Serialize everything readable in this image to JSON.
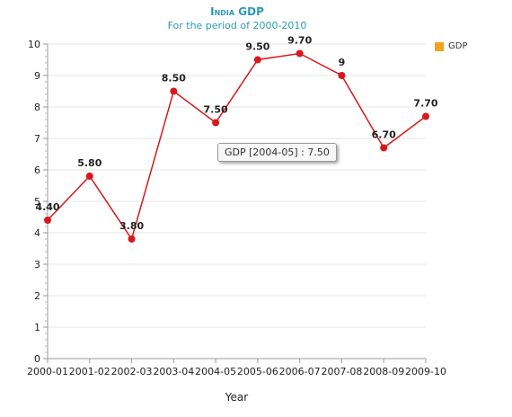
{
  "chart": {
    "title": "India GDP",
    "subtitle": "For the period of 2000-2010",
    "legend_label": "GDP",
    "tooltip_text": "GDP [2004-05] : 7.50"
  },
  "colors": {
    "line": "#d7191c",
    "marker": "#d7191c",
    "legend": "#f2a31b",
    "title": "#2a9bb3"
  },
  "chart_data": {
    "type": "line",
    "title": "India GDP",
    "subtitle": "For the period of 2000-2010",
    "xlabel": "Year",
    "ylabel": "",
    "categories": [
      "2000-01",
      "2001-02",
      "2002-03",
      "2003-04",
      "2004-05",
      "2005-06",
      "2006-07",
      "2007-08",
      "2008-09",
      "2009-10"
    ],
    "series": [
      {
        "name": "GDP",
        "values": [
          4.4,
          5.8,
          3.8,
          8.5,
          7.5,
          9.5,
          9.7,
          9,
          6.7,
          7.7
        ],
        "labels": [
          "4.40",
          "5.80",
          "3.80",
          "8.50",
          "7.50",
          "9.50",
          "9.70",
          "9",
          "6.70",
          "7.70"
        ]
      }
    ],
    "ylim": [
      0,
      10
    ],
    "yticks": [
      0,
      1,
      2,
      3,
      4,
      5,
      6,
      7,
      8,
      9,
      10
    ],
    "grid": true,
    "legend_position": "top-right"
  }
}
